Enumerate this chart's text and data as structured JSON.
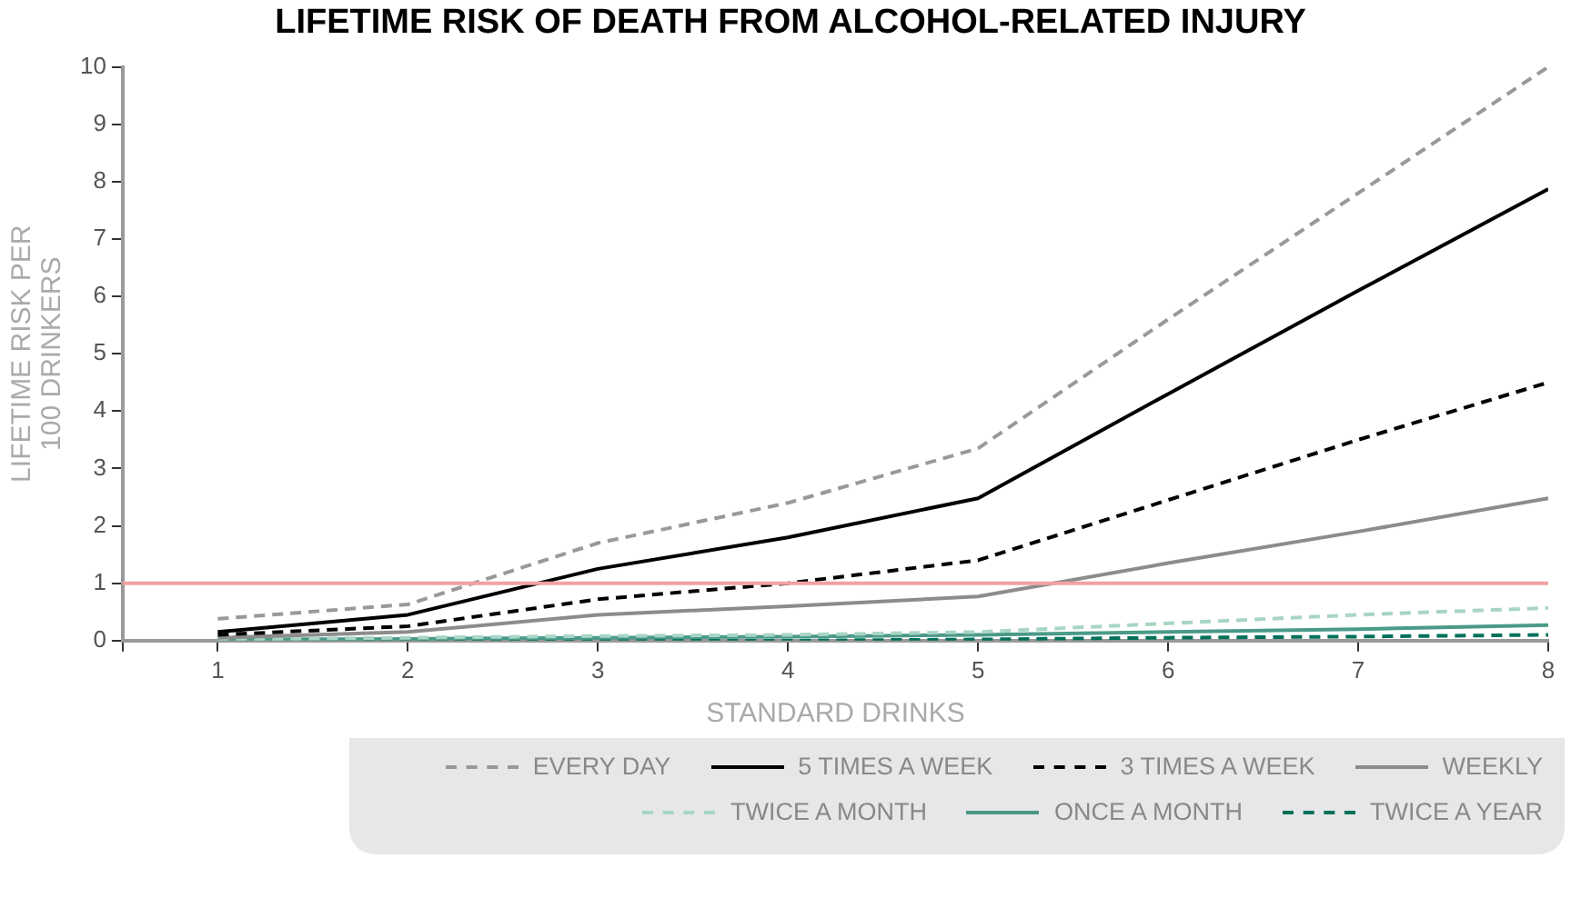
{
  "chart_data": {
    "type": "line",
    "title": "LIFETIME RISK OF DEATH FROM ALCOHOL-RELATED INJURY",
    "xlabel": "STANDARD DRINKS",
    "ylabel": "LIFETIME RISK PER\n100 DRINKERS",
    "x": [
      1,
      2,
      3,
      4,
      5,
      6,
      7,
      8
    ],
    "series": [
      {
        "name": "EVERY DAY",
        "color": "#999999",
        "line_style": "dashed",
        "values": [
          0.38,
          0.63,
          1.7,
          2.4,
          3.35,
          5.6,
          7.8,
          10.0
        ]
      },
      {
        "name": "5 TIMES A WEEK",
        "color": "#000000",
        "line_style": "solid",
        "values": [
          0.15,
          0.45,
          1.25,
          1.8,
          2.48,
          4.3,
          6.1,
          7.87
        ]
      },
      {
        "name": "3 TIMES A WEEK",
        "color": "#000000",
        "line_style": "dashed",
        "values": [
          0.1,
          0.25,
          0.72,
          1.0,
          1.4,
          2.45,
          3.5,
          4.5
        ]
      },
      {
        "name": "WEEKLY",
        "color": "#8c8c8c",
        "line_style": "solid",
        "values": [
          0.05,
          0.15,
          0.45,
          0.6,
          0.77,
          1.35,
          1.9,
          2.48
        ]
      },
      {
        "name": "TWICE A MONTH",
        "color": "#a8d5c5",
        "line_style": "dashed",
        "values": [
          0.02,
          0.05,
          0.08,
          0.1,
          0.15,
          0.3,
          0.45,
          0.57
        ]
      },
      {
        "name": "ONCE A MONTH",
        "color": "#4a9a88",
        "line_style": "solid",
        "values": [
          0.02,
          0.03,
          0.05,
          0.07,
          0.1,
          0.15,
          0.2,
          0.27
        ]
      },
      {
        "name": "TWICE A YEAR",
        "color": "#00705a",
        "line_style": "dashed",
        "values": [
          0.0,
          0.0,
          0.0,
          0.0,
          0.02,
          0.05,
          0.07,
          0.1
        ]
      }
    ],
    "xlim": [
      0.5,
      8
    ],
    "xticks": [
      {
        "value": 0.5,
        "label": null
      },
      1,
      2,
      3,
      4,
      5,
      6,
      7,
      8
    ],
    "ylim": [
      0,
      10
    ],
    "yticks": [
      0,
      1,
      2,
      3,
      4,
      5,
      6,
      7,
      8,
      9,
      10
    ],
    "ref_lines": [
      {
        "axis": "y",
        "value": 1,
        "color": "#f4a0a0"
      }
    ],
    "grid": false,
    "legend": "bottom",
    "marker": "none"
  }
}
